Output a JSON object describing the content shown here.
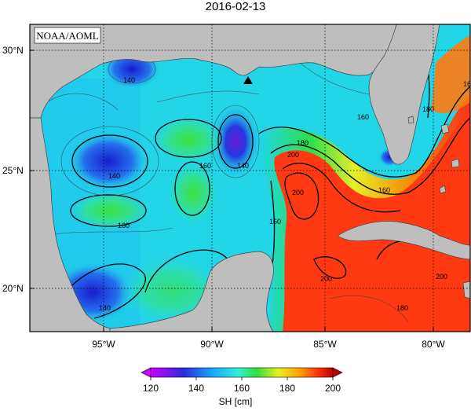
{
  "title": "2016-02-13",
  "source_label": "NOAA/AOML",
  "lat_labels": [
    "30°N",
    "25°N",
    "20°N"
  ],
  "lon_labels": [
    "95°W",
    "90°W",
    "85°W",
    "80°W"
  ],
  "contour_labels": [
    "140",
    "140",
    "140",
    "140",
    "160",
    "160",
    "160",
    "160",
    "160",
    "180",
    "180",
    "200",
    "200",
    "200",
    "200",
    "180",
    "160"
  ],
  "colorbar": {
    "ticks": [
      "120",
      "140",
      "160",
      "180",
      "200"
    ],
    "unit_label": "SH [cm]",
    "colors": [
      "#c000ff",
      "#2a2cd8",
      "#18a8ff",
      "#30ffd8",
      "#40ff40",
      "#f0ff20",
      "#ffa000",
      "#ff3010",
      "#a00000"
    ]
  },
  "colors": {
    "land": "#bebebe",
    "ocean_base": "#22d6e8",
    "high_sh": "#ff2a10",
    "low_sh": "#2432d8"
  },
  "marker": "triangle"
}
